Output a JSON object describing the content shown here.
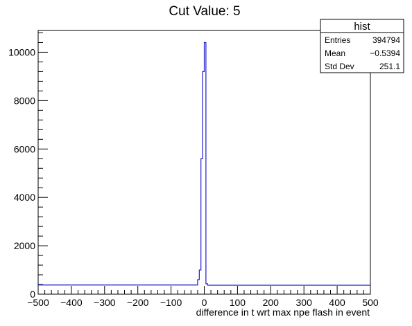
{
  "chart_data": {
    "type": "histogram",
    "title": "Cut Value: 5",
    "xlabel": "difference in t wrt max npe flash in event",
    "ylabel": "",
    "xlim": [
      -500,
      500
    ],
    "ylim": [
      0,
      10900
    ],
    "x_ticks": [
      -500,
      -400,
      -300,
      -200,
      -100,
      0,
      100,
      200,
      300,
      400,
      500
    ],
    "x_tick_labels": [
      "−500",
      "−400",
      "−300",
      "−200",
      "−100",
      "0",
      "100",
      "200",
      "300",
      "400",
      "500"
    ],
    "y_ticks": [
      0,
      2000,
      4000,
      6000,
      8000,
      10000
    ],
    "y_tick_labels": [
      "0",
      "2000",
      "4000",
      "6000",
      "8000",
      "10000"
    ],
    "line_color": "#1a1acc",
    "bins": [
      {
        "lo": -500,
        "hi": -20,
        "value": 380
      },
      {
        "lo": -20,
        "hi": -15,
        "value": 600
      },
      {
        "lo": -15,
        "hi": -10,
        "value": 1000
      },
      {
        "lo": -10,
        "hi": -5,
        "value": 5600
      },
      {
        "lo": -5,
        "hi": 0,
        "value": 9200
      },
      {
        "lo": 0,
        "hi": 5,
        "value": 10400
      },
      {
        "lo": 5,
        "hi": 10,
        "value": 430
      },
      {
        "lo": 10,
        "hi": 500,
        "value": 370
      }
    ],
    "stats": {
      "title": "hist",
      "rows": [
        {
          "label": "Entries",
          "value": "394794"
        },
        {
          "label": "Mean",
          "value": "−0.5394"
        },
        {
          "label": "Std Dev",
          "value": "251.1"
        }
      ]
    }
  }
}
